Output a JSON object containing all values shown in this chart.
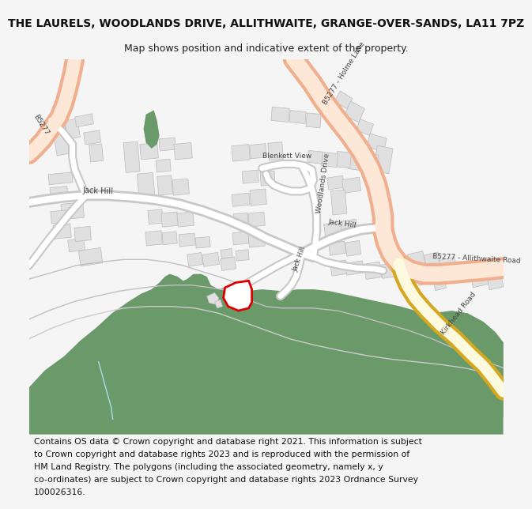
{
  "title_line1": "THE LAURELS, WOODLANDS DRIVE, ALLITHWAITE, GRANGE-OVER-SANDS, LA11 7PZ",
  "title_line2": "Map shows position and indicative extent of the property.",
  "footer": "Contains OS data © Crown copyright and database right 2021. This information is subject to Crown copyright and database rights 2023 and is reproduced with the permission of HM Land Registry. The polygons (including the associated geometry, namely x, y co-ordinates) are subject to Crown copyright and database rights 2023 Ordnance Survey 100026316.",
  "bg_color": "#f5f5f5",
  "map_bg": "#ffffff",
  "road_orange_outer": "#f0b090",
  "road_orange_inner": "#fde8d8",
  "road_gray_outer": "#c8c8c8",
  "road_gray_inner": "#ffffff",
  "road_yellow_outer": "#e8c840",
  "road_yellow_inner": "#fffff0",
  "green_fill": "#6a9a6a",
  "building_fill": "#e0e0e0",
  "building_stroke": "#bbbbbb",
  "property_fill": "#ffffff",
  "property_stroke": "#dd0000",
  "text_road": "#444444",
  "title_fontsize": 10,
  "subtitle_fontsize": 9,
  "footer_fontsize": 7.8
}
